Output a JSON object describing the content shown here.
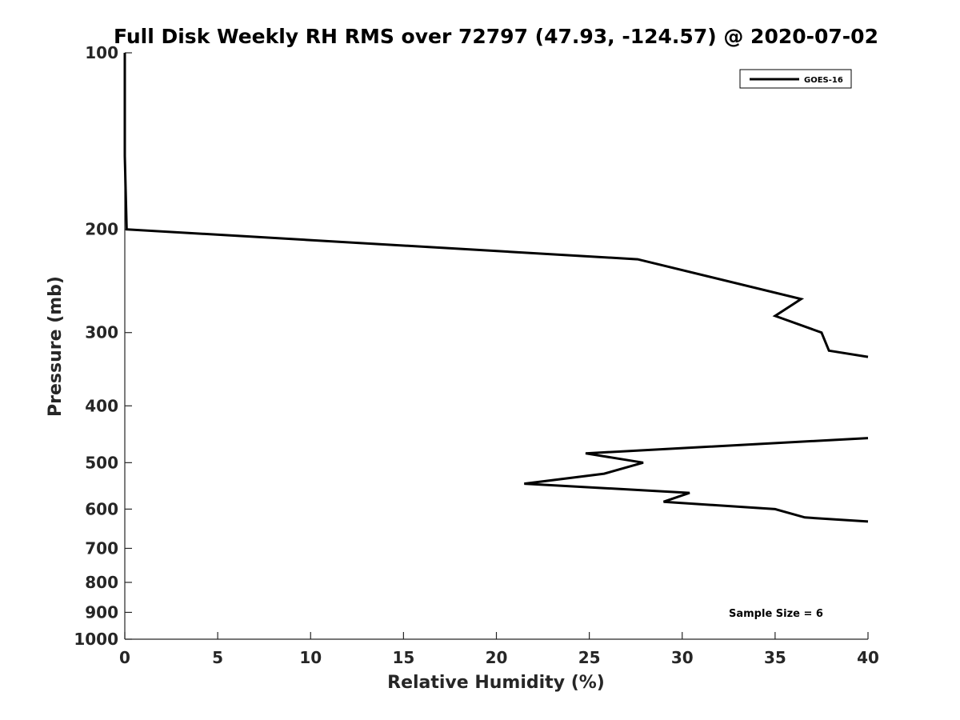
{
  "chart_data": {
    "type": "line",
    "title": "Full Disk Weekly RH RMS over 72797 (47.93, -124.57) @ 2020-07-02",
    "xlabel": "Relative Humidity (%)",
    "ylabel": "Pressure (mb)",
    "xlim": [
      0,
      40
    ],
    "ylim": [
      100,
      1000
    ],
    "y_scale": "log",
    "y_reversed": true,
    "x_ticks": [
      0,
      5,
      10,
      15,
      20,
      25,
      30,
      35,
      40
    ],
    "y_ticks": [
      100,
      200,
      300,
      400,
      500,
      600,
      700,
      800,
      900,
      1000
    ],
    "grid": false,
    "legend_position": "top-right",
    "color": "#000000",
    "series": [
      {
        "name": "GOES-16",
        "segments": [
          [
            [
              0.0,
              100
            ],
            [
              0.0,
              150
            ],
            [
              0.1,
              200
            ],
            [
              27.6,
              225
            ],
            [
              36.4,
              263
            ],
            [
              35.0,
              281
            ],
            [
              37.5,
              300
            ],
            [
              37.9,
              322
            ],
            [
              40.0,
              330
            ]
          ],
          [
            [
              40.0,
              454
            ],
            [
              24.8,
              482
            ],
            [
              27.9,
              500
            ],
            [
              25.8,
              522
            ],
            [
              21.5,
              543
            ],
            [
              30.4,
              563
            ],
            [
              29.0,
              583
            ],
            [
              35.0,
              600
            ],
            [
              36.6,
              620
            ],
            [
              40.0,
              630
            ]
          ]
        ]
      }
    ],
    "annotation": "Sample Size = 6"
  }
}
